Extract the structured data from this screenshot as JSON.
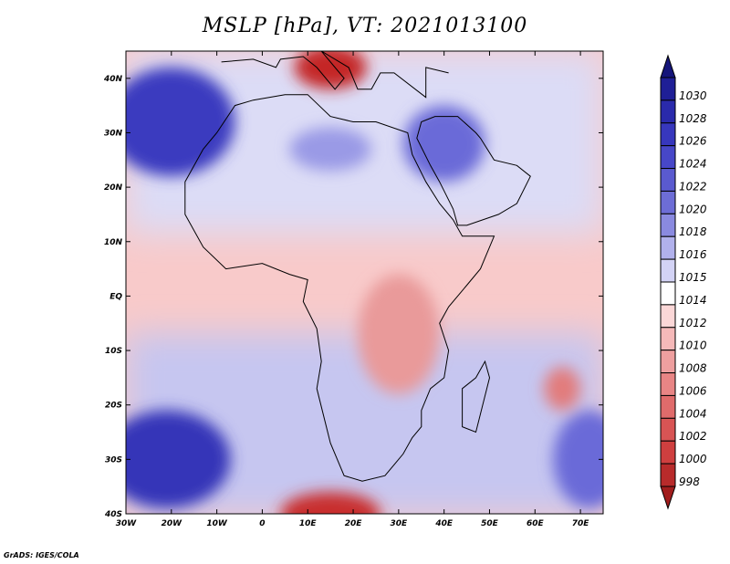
{
  "title": "MSLP [hPa], VT: 2021013100",
  "credit": "GrADS: IGES/COLA",
  "map": {
    "lon_range": [
      -30,
      75
    ],
    "lat_range": [
      -40,
      45
    ],
    "x_ticks": [
      {
        "lon": -30,
        "label": "30W"
      },
      {
        "lon": -20,
        "label": "20W"
      },
      {
        "lon": -10,
        "label": "10W"
      },
      {
        "lon": 0,
        "label": "0"
      },
      {
        "lon": 10,
        "label": "10E"
      },
      {
        "lon": 20,
        "label": "20E"
      },
      {
        "lon": 30,
        "label": "30E"
      },
      {
        "lon": 40,
        "label": "40E"
      },
      {
        "lon": 50,
        "label": "50E"
      },
      {
        "lon": 60,
        "label": "60E"
      },
      {
        "lon": 70,
        "label": "70E"
      }
    ],
    "y_ticks": [
      {
        "lat": 40,
        "label": "40N"
      },
      {
        "lat": 30,
        "label": "30N"
      },
      {
        "lat": 20,
        "label": "20N"
      },
      {
        "lat": 10,
        "label": "10N"
      },
      {
        "lat": 0,
        "label": "EQ"
      },
      {
        "lat": -10,
        "label": "10S"
      },
      {
        "lat": -20,
        "label": "20S"
      },
      {
        "lat": -30,
        "label": "30S"
      },
      {
        "lat": -40,
        "label": "40S"
      }
    ],
    "pressure_cells": [
      {
        "name": "azores-high",
        "lon": -20,
        "lat": 32,
        "rlon": 14,
        "rlat": 10,
        "color": "#3b3bbf"
      },
      {
        "name": "south-atlantic-high",
        "lon": -21,
        "lat": -30,
        "rlon": 14,
        "rlat": 9,
        "color": "#3535b8"
      },
      {
        "name": "arabian-high",
        "lon": 40,
        "lat": 28,
        "rlon": 9,
        "rlat": 7,
        "color": "#6a6ad8"
      },
      {
        "name": "sahara-high",
        "lon": 15,
        "lat": 27,
        "rlon": 9,
        "rlat": 4,
        "color": "#9a9ae6"
      },
      {
        "name": "indian-ocean-high",
        "lon": 72,
        "lat": -30,
        "rlon": 8,
        "rlat": 9,
        "color": "#6a6ad8"
      },
      {
        "name": "mediterranean-low",
        "lon": 15,
        "lat": 42,
        "rlon": 8,
        "rlat": 4,
        "color": "#c42828"
      },
      {
        "name": "southern-low",
        "lon": 15,
        "lat": -40,
        "rlon": 11,
        "rlat": 4,
        "color": "#c82d2d"
      },
      {
        "name": "madagascar-low",
        "lon": 66,
        "lat": -17,
        "rlon": 4,
        "rlat": 4,
        "color": "#e27b7b"
      },
      {
        "name": "east-africa-low",
        "lon": 30,
        "lat": -7,
        "rlon": 9,
        "rlat": 11,
        "color": "#e99a9a"
      }
    ],
    "land_outline": [
      [
        -17,
        21
      ],
      [
        -17,
        15
      ],
      [
        -13,
        9
      ],
      [
        -8,
        5
      ],
      [
        0,
        6
      ],
      [
        6,
        4
      ],
      [
        10,
        3
      ],
      [
        9,
        -1
      ],
      [
        12,
        -6
      ],
      [
        13,
        -12
      ],
      [
        12,
        -17
      ],
      [
        15,
        -27
      ],
      [
        18,
        -33
      ],
      [
        22,
        -34
      ],
      [
        27,
        -33
      ],
      [
        31,
        -29
      ],
      [
        33,
        -26
      ],
      [
        35,
        -24
      ],
      [
        35,
        -21
      ],
      [
        37,
        -17
      ],
      [
        40,
        -15
      ],
      [
        41,
        -10
      ],
      [
        39,
        -5
      ],
      [
        41,
        -2
      ],
      [
        45,
        2
      ],
      [
        48,
        5
      ],
      [
        51,
        11
      ],
      [
        44,
        11
      ],
      [
        42,
        14
      ],
      [
        39,
        17
      ],
      [
        36,
        21
      ],
      [
        33,
        26
      ],
      [
        32,
        30
      ],
      [
        25,
        32
      ],
      [
        20,
        32
      ],
      [
        15,
        33
      ],
      [
        10,
        37
      ],
      [
        5,
        37
      ],
      [
        -2,
        36
      ],
      [
        -6,
        35
      ],
      [
        -10,
        30
      ],
      [
        -13,
        27
      ],
      [
        -17,
        21
      ]
    ],
    "arabia_outline": [
      [
        34,
        29
      ],
      [
        37,
        24
      ],
      [
        39,
        21
      ],
      [
        42,
        16
      ],
      [
        43,
        13
      ],
      [
        45,
        13
      ],
      [
        52,
        15
      ],
      [
        56,
        17
      ],
      [
        59,
        22
      ],
      [
        56,
        24
      ],
      [
        51,
        25
      ],
      [
        48,
        29
      ],
      [
        47,
        30
      ],
      [
        43,
        33
      ],
      [
        38,
        33
      ],
      [
        35,
        32
      ],
      [
        34,
        29
      ]
    ],
    "madagascar_outline": [
      [
        49,
        -12
      ],
      [
        50,
        -15
      ],
      [
        47,
        -25
      ],
      [
        44,
        -24
      ],
      [
        44,
        -17
      ],
      [
        47,
        -15
      ],
      [
        49,
        -12
      ]
    ],
    "europe_outline": [
      [
        -9,
        43
      ],
      [
        -2,
        43.5
      ],
      [
        3,
        42
      ],
      [
        4,
        43.5
      ],
      [
        9,
        44
      ],
      [
        12,
        42
      ],
      [
        16,
        38
      ],
      [
        18,
        40
      ],
      [
        13,
        45
      ],
      [
        19,
        42
      ],
      [
        21,
        38
      ],
      [
        24,
        38
      ],
      [
        26,
        41
      ],
      [
        29,
        41
      ],
      [
        36,
        36.5
      ],
      [
        36,
        42
      ],
      [
        41,
        41
      ]
    ]
  },
  "colorbar": {
    "levels": [
      {
        "label": "1030",
        "color": "#1f1f96"
      },
      {
        "label": "1028",
        "color": "#2a2aab"
      },
      {
        "label": "1026",
        "color": "#3737bd"
      },
      {
        "label": "1024",
        "color": "#4747c8"
      },
      {
        "label": "1022",
        "color": "#5a5acf"
      },
      {
        "label": "1020",
        "color": "#6d6dd6"
      },
      {
        "label": "1018",
        "color": "#8a8ae0"
      },
      {
        "label": "1016",
        "color": "#b1b1ec"
      },
      {
        "label": "1015",
        "color": "#d3d3f5"
      },
      {
        "label": "1014",
        "color": "#ffffff"
      },
      {
        "label": "1012",
        "color": "#fbd7d7"
      },
      {
        "label": "1010",
        "color": "#f5b9b9"
      },
      {
        "label": "1008",
        "color": "#ee9f9f"
      },
      {
        "label": "1006",
        "color": "#e88585"
      },
      {
        "label": "1004",
        "color": "#e06b6b"
      },
      {
        "label": "1002",
        "color": "#d85454"
      },
      {
        "label": "1000",
        "color": "#cf3f3f"
      },
      {
        "label": "998",
        "color": "#b82b2b"
      }
    ],
    "top_arrow_color": "#15157a",
    "bottom_arrow_color": "#a11d1d"
  }
}
